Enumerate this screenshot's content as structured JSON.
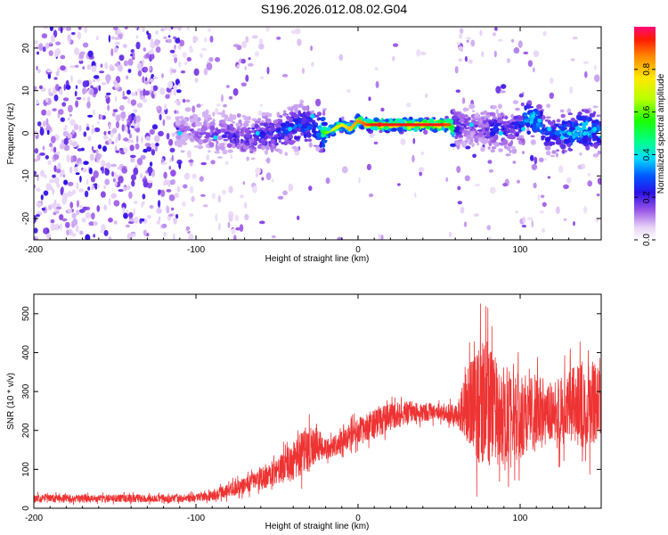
{
  "chart_data": [
    {
      "type": "heatmap",
      "title": "S196.2026.012.08.02.G04",
      "xlabel": "Height of straight line (km)",
      "ylabel": "Frequency (Hz)",
      "xlim": [
        -200,
        150
      ],
      "ylim": [
        -25,
        25
      ],
      "xticks": [
        -200,
        -100,
        0,
        100
      ],
      "yticks": [
        -20,
        -10,
        0,
        10,
        20
      ],
      "colorbar": {
        "label": "Normalized spectral amplitude",
        "range": [
          0,
          1
        ],
        "ticks": [
          0.0,
          0.2,
          0.4,
          0.6,
          0.8
        ]
      },
      "ridge": {
        "x": [
          -110,
          -90,
          -70,
          -50,
          -35,
          -25,
          -20,
          -15,
          -10,
          -5,
          0,
          5,
          10,
          20,
          30,
          40,
          50,
          57,
          60,
          65,
          75,
          85,
          95,
          100,
          105,
          110,
          115,
          120,
          130,
          140,
          150
        ],
        "freq": [
          1,
          0,
          -1,
          0,
          2,
          1,
          0,
          1,
          2,
          1,
          3,
          2,
          2,
          2,
          2,
          2,
          2,
          2,
          1,
          2,
          1,
          1,
          1,
          2,
          4,
          3,
          1,
          0,
          0,
          1,
          0
        ],
        "peak": [
          0.15,
          0.2,
          0.25,
          0.3,
          0.35,
          0.35,
          0.6,
          0.7,
          0.75,
          0.8,
          0.85,
          0.9,
          0.95,
          0.95,
          0.95,
          0.95,
          0.95,
          0.9,
          0.3,
          0.2,
          0.2,
          0.3,
          0.25,
          0.3,
          0.5,
          0.45,
          0.35,
          0.3,
          0.45,
          0.5,
          0.4
        ]
      }
    },
    {
      "type": "line",
      "title": "",
      "xlabel": "Height of straight line (km)",
      "ylabel": "SNR (10 * v/v)",
      "xlim": [
        -200,
        150
      ],
      "ylim": [
        0,
        550
      ],
      "xticks": [
        -200,
        -100,
        0,
        100
      ],
      "yticks": [
        0,
        100,
        200,
        300,
        400,
        500
      ],
      "series": [
        {
          "name": "SNR",
          "color": "#ee3333",
          "x": [
            -200,
            -150,
            -120,
            -100,
            -90,
            -80,
            -70,
            -60,
            -50,
            -40,
            -35,
            -30,
            -25,
            -20,
            -10,
            0,
            10,
            20,
            30,
            40,
            50,
            55,
            60,
            65,
            70,
            75,
            80,
            90,
            100,
            110,
            120,
            130,
            140,
            150
          ],
          "mean": [
            25,
            25,
            25,
            27,
            32,
            45,
            60,
            75,
            95,
            120,
            140,
            160,
            165,
            150,
            170,
            200,
            215,
            235,
            245,
            248,
            248,
            245,
            240,
            255,
            270,
            270,
            260,
            240,
            235,
            245,
            240,
            260,
            260,
            280
          ],
          "amp": [
            15,
            15,
            15,
            15,
            18,
            25,
            30,
            40,
            50,
            70,
            80,
            85,
            60,
            40,
            40,
            50,
            55,
            50,
            45,
            35,
            30,
            35,
            40,
            100,
            170,
            230,
            230,
            180,
            160,
            140,
            120,
            140,
            160,
            160
          ]
        }
      ]
    }
  ]
}
